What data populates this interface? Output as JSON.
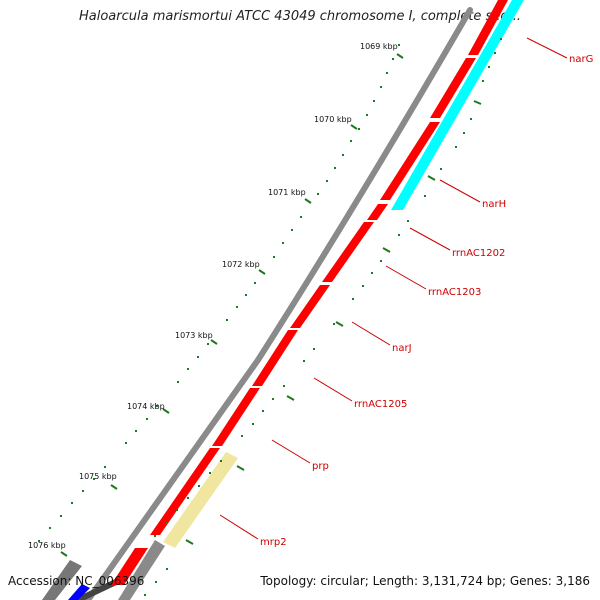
{
  "title": "Haloarcula marismortui ATCC 43049 chromosome I, complete seq...",
  "footer": {
    "accession": "Accession: NC_006396",
    "summary": "Topology: circular; Length: 3,131,724 bp; Genes: 3,186"
  },
  "ticks": [
    {
      "label": "1069 kbp"
    },
    {
      "label": "1070 kbp"
    },
    {
      "label": "1071 kbp"
    },
    {
      "label": "1072 kbp"
    },
    {
      "label": "1073 kbp"
    },
    {
      "label": "1074 kbp"
    },
    {
      "label": "1075 kbp"
    },
    {
      "label": "1076 kbp"
    }
  ],
  "gene_labels": [
    {
      "text": "narG"
    },
    {
      "text": "narH"
    },
    {
      "text": "rrnAC1202"
    },
    {
      "text": "rrnAC1203"
    },
    {
      "text": "narJ"
    },
    {
      "text": "rrnAC1205"
    },
    {
      "text": "prp"
    },
    {
      "text": "mrp2"
    }
  ],
  "colors": {
    "backbone": "#8a8a8a",
    "gene_red": "#ff0000",
    "gene_cyan": "#00ffff",
    "gene_yellow": "#f0e6a0",
    "gene_blue": "#0000ff",
    "tick_green": "#1e7a1e",
    "label_red": "#cc0000"
  }
}
